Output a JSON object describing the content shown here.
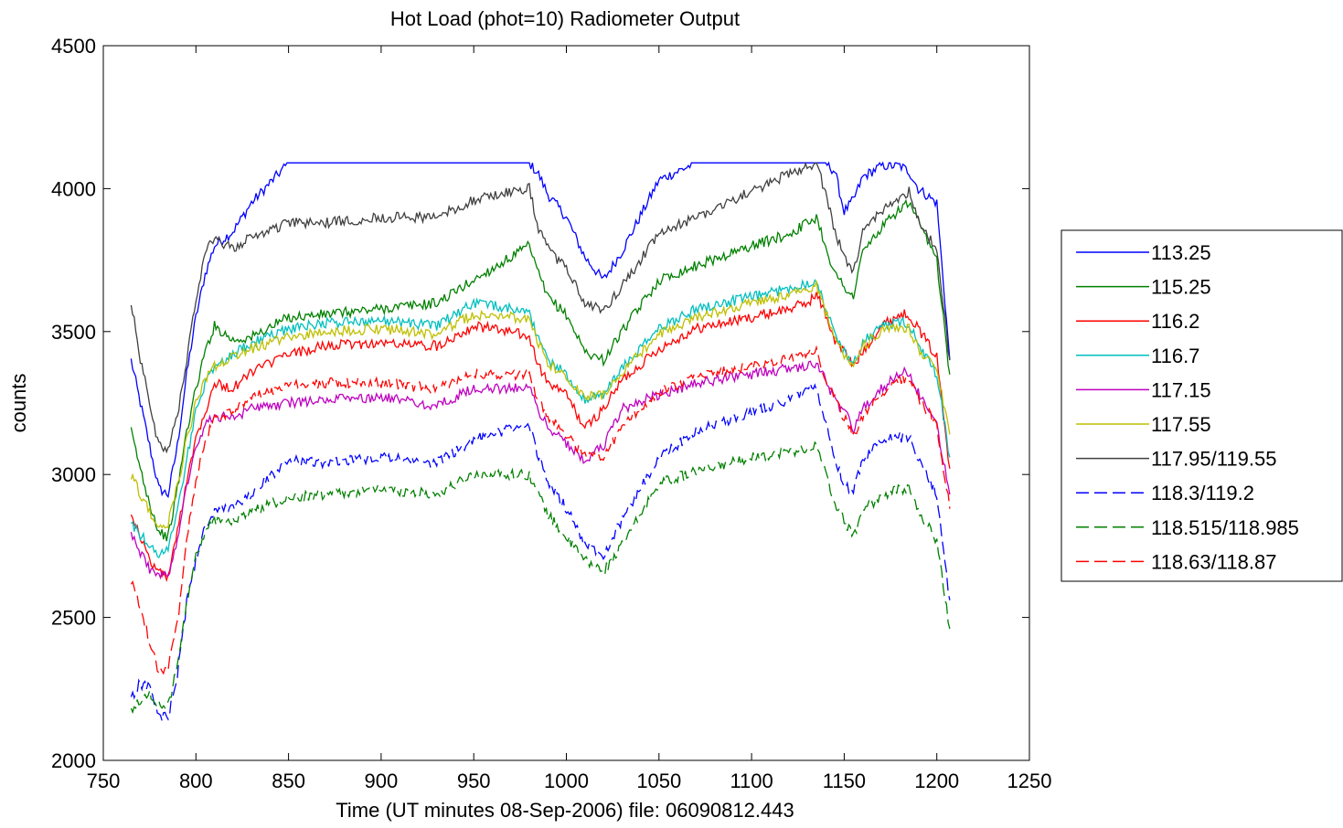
{
  "chart_data": {
    "type": "line",
    "title": "Hot Load (phot=10) Radiometer Output",
    "xlabel": "Time (UT minutes 08-Sep-2006) file: 06090812.443",
    "ylabel": "counts",
    "xlim": [
      750,
      1250
    ],
    "ylim": [
      2000,
      4500
    ],
    "xticks": [
      750,
      800,
      850,
      900,
      950,
      1000,
      1050,
      1100,
      1150,
      1200,
      1250
    ],
    "yticks": [
      2000,
      2500,
      3000,
      3500,
      4000,
      4500
    ],
    "grid": false,
    "legend_position": "outside-right",
    "x": [
      765,
      770,
      775,
      780,
      785,
      790,
      795,
      800,
      805,
      810,
      820,
      830,
      850,
      870,
      900,
      930,
      950,
      970,
      980,
      985,
      990,
      1000,
      1010,
      1020,
      1030,
      1050,
      1070,
      1100,
      1120,
      1130,
      1135,
      1140,
      1145,
      1150,
      1155,
      1160,
      1170,
      1180,
      1185,
      1190,
      1200,
      1207
    ],
    "series": [
      {
        "name": "113.25",
        "color": "#0000ff",
        "dash": "solid",
        "values": [
          3400,
          3250,
          3100,
          2950,
          2930,
          3100,
          3350,
          3550,
          3700,
          3800,
          3850,
          3950,
          4090,
          4090,
          4090,
          4090,
          4090,
          4090,
          4090,
          4050,
          3980,
          3900,
          3760,
          3680,
          3780,
          4030,
          4090,
          4090,
          4090,
          4090,
          4090,
          4090,
          4060,
          3920,
          3960,
          4040,
          4080,
          4080,
          4060,
          4000,
          3950,
          3400
        ]
      },
      {
        "name": "115.25",
        "color": "#008000",
        "dash": "solid",
        "values": [
          3150,
          3020,
          2900,
          2800,
          2780,
          2950,
          3150,
          3300,
          3430,
          3520,
          3470,
          3480,
          3550,
          3560,
          3580,
          3600,
          3680,
          3760,
          3800,
          3700,
          3620,
          3560,
          3430,
          3400,
          3500,
          3680,
          3730,
          3800,
          3840,
          3880,
          3900,
          3800,
          3700,
          3660,
          3620,
          3780,
          3860,
          3930,
          3950,
          3880,
          3750,
          3350
        ]
      },
      {
        "name": "116.2",
        "color": "#ff0000",
        "dash": "solid",
        "values": [
          2870,
          2780,
          2700,
          2660,
          2640,
          2800,
          2980,
          3130,
          3220,
          3320,
          3300,
          3360,
          3420,
          3450,
          3460,
          3450,
          3520,
          3500,
          3480,
          3380,
          3320,
          3280,
          3160,
          3230,
          3330,
          3440,
          3510,
          3550,
          3580,
          3600,
          3630,
          3560,
          3470,
          3430,
          3380,
          3430,
          3520,
          3560,
          3560,
          3510,
          3410,
          3020
        ]
      },
      {
        "name": "116.7",
        "color": "#00bfbf",
        "dash": "solid",
        "values": [
          2830,
          2790,
          2750,
          2720,
          2740,
          2880,
          3050,
          3220,
          3320,
          3380,
          3420,
          3460,
          3510,
          3530,
          3540,
          3520,
          3600,
          3580,
          3570,
          3470,
          3400,
          3350,
          3260,
          3280,
          3370,
          3510,
          3580,
          3620,
          3650,
          3670,
          3680,
          3580,
          3490,
          3430,
          3390,
          3460,
          3520,
          3530,
          3530,
          3450,
          3350,
          3060
        ]
      },
      {
        "name": "117.15",
        "color": "#bf00bf",
        "dash": "solid",
        "values": [
          2790,
          2730,
          2670,
          2640,
          2650,
          2780,
          2960,
          3100,
          3170,
          3210,
          3190,
          3230,
          3250,
          3260,
          3270,
          3240,
          3300,
          3300,
          3310,
          3220,
          3170,
          3110,
          3050,
          3100,
          3230,
          3280,
          3320,
          3350,
          3370,
          3380,
          3390,
          3330,
          3260,
          3220,
          3160,
          3230,
          3300,
          3350,
          3360,
          3290,
          3180,
          2930
        ]
      },
      {
        "name": "117.55",
        "color": "#bfbf00",
        "dash": "solid",
        "values": [
          3000,
          2930,
          2870,
          2820,
          2830,
          2960,
          3120,
          3250,
          3330,
          3380,
          3410,
          3440,
          3480,
          3500,
          3510,
          3490,
          3560,
          3550,
          3540,
          3460,
          3390,
          3340,
          3270,
          3280,
          3360,
          3490,
          3550,
          3600,
          3630,
          3650,
          3660,
          3570,
          3480,
          3420,
          3380,
          3450,
          3500,
          3510,
          3510,
          3440,
          3370,
          3140
        ]
      },
      {
        "name": "117.95/119.55",
        "color": "#404040",
        "dash": "solid",
        "values": [
          3600,
          3400,
          3250,
          3100,
          3090,
          3200,
          3400,
          3620,
          3780,
          3820,
          3790,
          3830,
          3880,
          3880,
          3900,
          3900,
          3960,
          3990,
          4000,
          3860,
          3790,
          3720,
          3600,
          3570,
          3660,
          3840,
          3900,
          3990,
          4050,
          4080,
          4090,
          3980,
          3850,
          3760,
          3700,
          3850,
          3920,
          3970,
          3990,
          3900,
          3780,
          3400
        ]
      },
      {
        "name": "118.3/119.2",
        "color": "#0000ff",
        "dash": "dashed",
        "values": [
          2220,
          2270,
          2250,
          2150,
          2150,
          2300,
          2550,
          2700,
          2820,
          2870,
          2880,
          2930,
          3050,
          3040,
          3060,
          3040,
          3120,
          3160,
          3170,
          3060,
          2980,
          2880,
          2760,
          2720,
          2840,
          3060,
          3150,
          3220,
          3260,
          3300,
          3310,
          3180,
          3050,
          2970,
          2940,
          3050,
          3120,
          3130,
          3130,
          3050,
          2930,
          2560
        ]
      },
      {
        "name": "118.515/118.985",
        "color": "#008000",
        "dash": "dashed",
        "values": [
          2170,
          2210,
          2230,
          2200,
          2190,
          2330,
          2560,
          2710,
          2800,
          2840,
          2840,
          2870,
          2920,
          2930,
          2950,
          2930,
          3000,
          3000,
          3000,
          2930,
          2860,
          2780,
          2700,
          2660,
          2750,
          2970,
          3010,
          3060,
          3080,
          3090,
          3100,
          3000,
          2900,
          2840,
          2780,
          2880,
          2920,
          2950,
          2950,
          2870,
          2770,
          2460
        ]
      },
      {
        "name": "118.63/118.87",
        "color": "#ff0000",
        "dash": "dashed",
        "values": [
          2630,
          2540,
          2410,
          2310,
          2320,
          2480,
          2760,
          2990,
          3120,
          3200,
          3220,
          3270,
          3310,
          3320,
          3320,
          3300,
          3350,
          3350,
          3350,
          3260,
          3200,
          3140,
          3060,
          3060,
          3170,
          3290,
          3340,
          3380,
          3410,
          3420,
          3430,
          3330,
          3260,
          3200,
          3130,
          3200,
          3280,
          3330,
          3340,
          3270,
          3170,
          2880
        ]
      }
    ]
  }
}
